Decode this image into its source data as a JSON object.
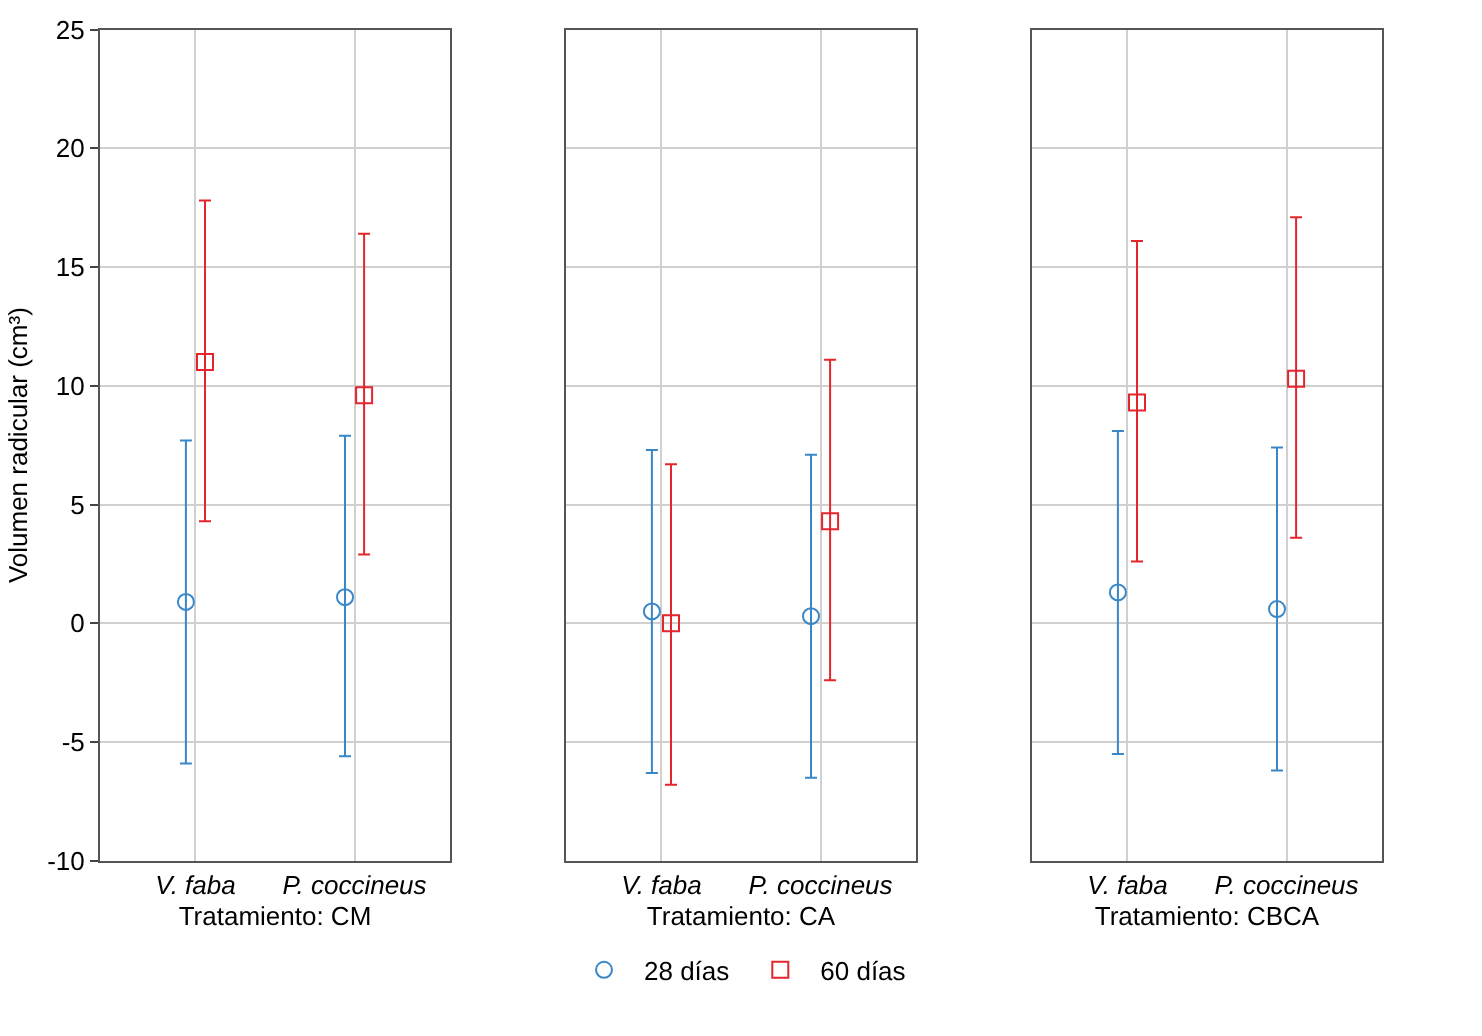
{
  "chart_data": [
    {
      "type": "scatter",
      "xlabel": "Tratamiento: CM",
      "ylabel": "Volumen radicular (cm³)",
      "categories": [
        "V. faba",
        "P. coccineus"
      ],
      "ylim": [
        -10,
        25
      ],
      "yticks": [
        -10,
        -5,
        0,
        5,
        10,
        15,
        20,
        25
      ],
      "grid": true,
      "legend": "bottom",
      "series": [
        {
          "name": "28 días",
          "color": "#3a87c8",
          "marker": "circle",
          "values": [
            0.9,
            1.1
          ],
          "errors": [
            [
              -5.9,
              7.7
            ],
            [
              -5.6,
              7.9
            ]
          ]
        },
        {
          "name": "60 días",
          "color": "#e4262c",
          "marker": "square",
          "values": [
            11.0,
            9.6
          ],
          "errors": [
            [
              4.3,
              17.8
            ],
            [
              2.9,
              16.4
            ]
          ]
        }
      ]
    },
    {
      "type": "scatter",
      "xlabel": "Tratamiento: CA",
      "categories": [
        "V. faba",
        "P. coccineus"
      ],
      "ylim": [
        -10,
        25
      ],
      "yticks": [
        -10,
        -5,
        0,
        5,
        10,
        15,
        20,
        25
      ],
      "grid": true,
      "tick_labels": "x",
      "series": [
        {
          "color": "#3a87c8",
          "marker": "circle",
          "values": [
            0.5,
            0.3
          ],
          "errors": [
            [
              -6.3,
              7.3
            ],
            [
              -6.5,
              7.1
            ]
          ]
        },
        {
          "color": "#e4262c",
          "marker": "square",
          "values": [
            0.0,
            4.3
          ],
          "errors": [
            [
              -6.8,
              6.7
            ],
            [
              -2.4,
              11.1
            ]
          ]
        }
      ]
    },
    {
      "type": "scatter",
      "xlabel": "Tratamiento: CBCA",
      "categories": [
        "V. faba",
        "P. coccineus"
      ],
      "ylim": [
        -10,
        25
      ],
      "yticks": [
        -10,
        -5,
        0,
        5,
        10,
        15,
        20,
        25
      ],
      "grid": true,
      "tick_labels": "x",
      "series": [
        {
          "color": "#3a87c8",
          "marker": "circle",
          "values": [
            1.3,
            0.6
          ],
          "errors": [
            [
              -5.5,
              8.1
            ],
            [
              -6.2,
              7.4
            ]
          ]
        },
        {
          "color": "#e4262c",
          "marker": "square",
          "values": [
            9.3,
            10.3
          ],
          "errors": [
            [
              2.6,
              16.1
            ],
            [
              3.6,
              17.1
            ]
          ]
        }
      ]
    }
  ]
}
